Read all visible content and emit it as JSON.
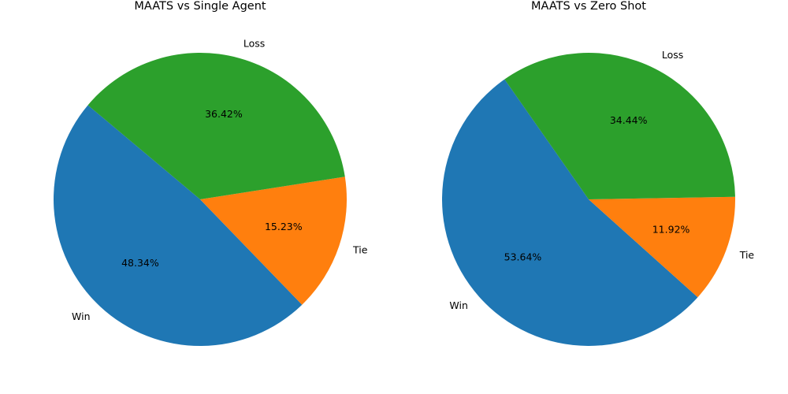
{
  "chart_data": [
    {
      "type": "pie",
      "title": "MAATS vs Single Agent",
      "categories": [
        "Win",
        "Tie",
        "Loss"
      ],
      "values": [
        48.34,
        15.23,
        36.42
      ],
      "value_labels": [
        "48.34%",
        "15.23%",
        "36.42%"
      ],
      "colors": [
        "#1f77b4",
        "#ff7f0e",
        "#2ca02c"
      ],
      "start_angle_deg": 140,
      "direction": "counterclockwise"
    },
    {
      "type": "pie",
      "title": "MAATS vs Zero Shot",
      "categories": [
        "Win",
        "Tie",
        "Loss"
      ],
      "values": [
        53.64,
        11.92,
        34.44
      ],
      "value_labels": [
        "53.64%",
        "11.92%",
        "34.44%"
      ],
      "colors": [
        "#1f77b4",
        "#ff7f0e",
        "#2ca02c"
      ],
      "start_angle_deg": 125,
      "direction": "counterclockwise"
    }
  ]
}
